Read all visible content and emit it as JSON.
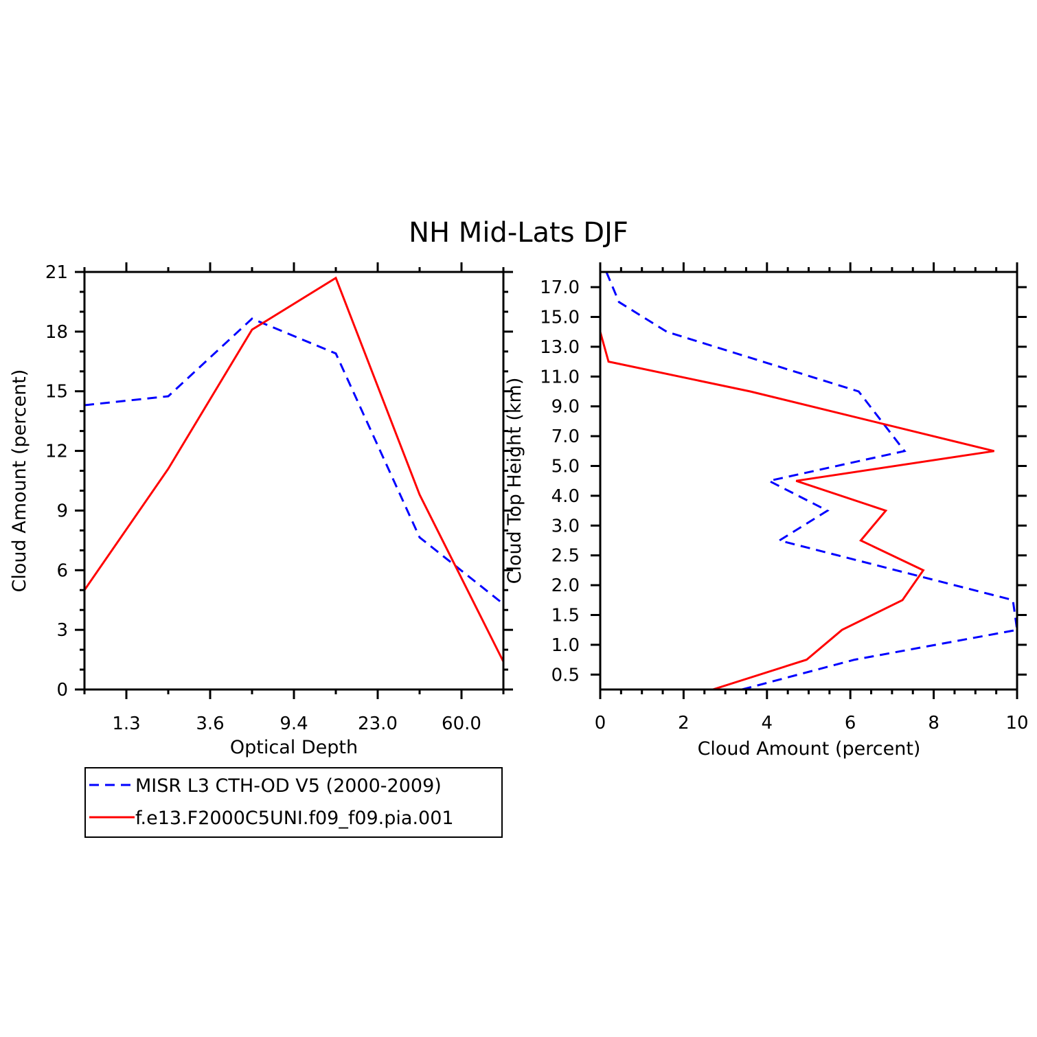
{
  "title": "NH Mid-Lats DJF",
  "colors": {
    "misr": "#0000ff",
    "model": "#ff0000",
    "axis": "#000000"
  },
  "legend": {
    "items": [
      {
        "label": "MISR L3 CTH-OD V5 (2000-2009)",
        "style": "dashed",
        "color": "#0000ff"
      },
      {
        "label": "f.e13.F2000C5UNI.f09_f09.pia.001",
        "style": "solid",
        "color": "#ff0000"
      }
    ]
  },
  "chart_data": [
    {
      "type": "line",
      "title": "",
      "xlabel": "Optical Depth",
      "ylabel": "Cloud Amount (percent)",
      "x_categories": [
        "",
        "1.3",
        "",
        "3.6",
        "",
        "9.4",
        "",
        "23.0",
        "",
        "60.0",
        ""
      ],
      "x_tick_labels": [
        "1.3",
        "3.6",
        "9.4",
        "23.0",
        "60.0"
      ],
      "y_ticks": [
        0,
        3,
        6,
        9,
        12,
        15,
        18,
        21
      ],
      "ylim": [
        0,
        21
      ],
      "series": [
        {
          "name": "MISR L3 CTH-OD V5 (2000-2009)",
          "style": "dashed",
          "color": "#0000ff",
          "values": [
            14.3,
            14.75,
            18.65,
            16.9,
            7.65,
            4.3
          ]
        },
        {
          "name": "f.e13.F2000C5UNI.f09_f09.pia.001",
          "style": "solid",
          "color": "#ff0000",
          "values": [
            5.0,
            11.1,
            18.1,
            20.7,
            9.8,
            1.4
          ]
        }
      ]
    },
    {
      "type": "line",
      "title": "",
      "xlabel": "Cloud Amount (percent)",
      "ylabel": "Cloud Top Height (km)",
      "x_ticks": [
        0,
        2,
        4,
        6,
        8,
        10
      ],
      "xlim": [
        0,
        10
      ],
      "y_tick_labels": [
        "0.5",
        "1.0",
        "1.5",
        "2.0",
        "2.5",
        "3.0",
        "4.0",
        "5.0",
        "7.0",
        "9.0",
        "11.0",
        "13.0",
        "15.0",
        "17.0"
      ],
      "y_levels": [
        "0.25",
        "0.5",
        "1.0",
        "1.5",
        "2.0",
        "2.5",
        "3.0",
        "4.0",
        "5.0",
        "7.0",
        "9.0",
        "11.0",
        "13.0",
        "15.0",
        "17.0",
        "18.0"
      ],
      "series": [
        {
          "name": "MISR L3 CTH-OD V5 (2000-2009)",
          "style": "dashed",
          "color": "#0000ff",
          "points": [
            [
              3.4,
              "0.25"
            ],
            [
              6.1,
              "0.75"
            ],
            [
              10.0,
              "1.25"
            ],
            [
              9.9,
              "1.75"
            ],
            [
              4.3,
              "2.75"
            ],
            [
              5.45,
              "3.5"
            ],
            [
              4.05,
              "4.5"
            ],
            [
              7.3,
              "6.0"
            ],
            [
              6.2,
              "10.0"
            ],
            [
              1.6,
              "14.0"
            ],
            [
              0.45,
              "16.0"
            ],
            [
              0.15,
              "18.0"
            ]
          ]
        },
        {
          "name": "f.e13.F2000C5UNI.f09_f09.pia.001",
          "style": "solid",
          "color": "#ff0000",
          "points": [
            [
              2.7,
              "0.25"
            ],
            [
              4.95,
              "0.75"
            ],
            [
              5.8,
              "1.25"
            ],
            [
              7.25,
              "1.75"
            ],
            [
              7.75,
              "2.25"
            ],
            [
              6.25,
              "2.75"
            ],
            [
              6.85,
              "3.5"
            ],
            [
              4.7,
              "4.5"
            ],
            [
              9.45,
              "6.0"
            ],
            [
              3.6,
              "10.0"
            ],
            [
              0.2,
              "12.0"
            ],
            [
              0.0,
              "14.0"
            ]
          ]
        }
      ]
    }
  ]
}
